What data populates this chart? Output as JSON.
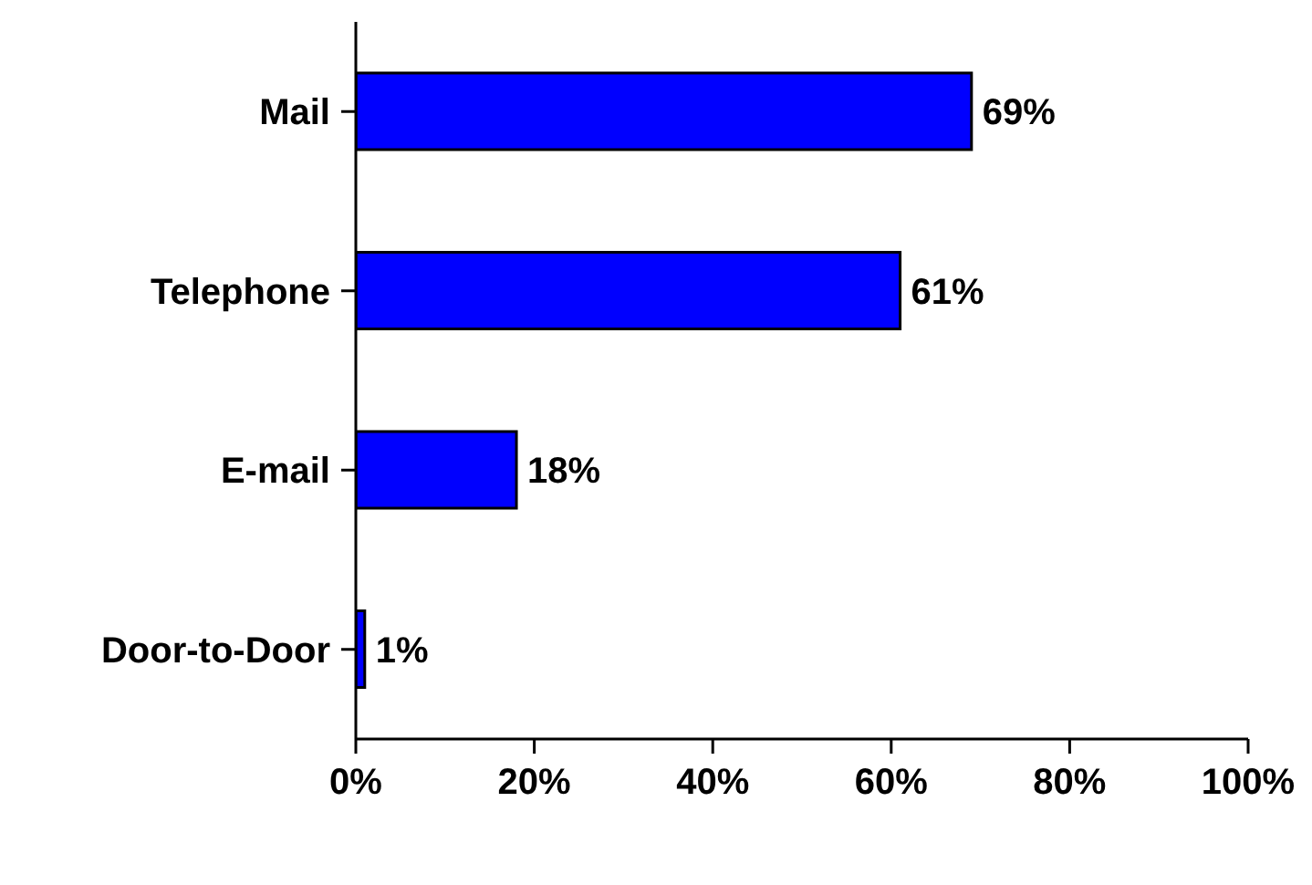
{
  "chart_data": {
    "type": "bar",
    "orientation": "horizontal",
    "categories": [
      "Mail",
      "Telephone",
      "E-mail",
      "Door-to-Door"
    ],
    "values": [
      69,
      61,
      18,
      1
    ],
    "color": "#0000ff",
    "value_labels": [
      "69%",
      "61%",
      "18%",
      "1%"
    ],
    "xlim": [
      0,
      100
    ],
    "xticks": [
      {
        "value": 0,
        "label": "0%"
      },
      {
        "value": 20,
        "label": "20%"
      },
      {
        "value": 40,
        "label": "40%"
      },
      {
        "value": 60,
        "label": "60%"
      },
      {
        "value": 80,
        "label": "80%"
      },
      {
        "value": 100,
        "label": "100%"
      }
    ],
    "grid": false,
    "legend": false
  }
}
